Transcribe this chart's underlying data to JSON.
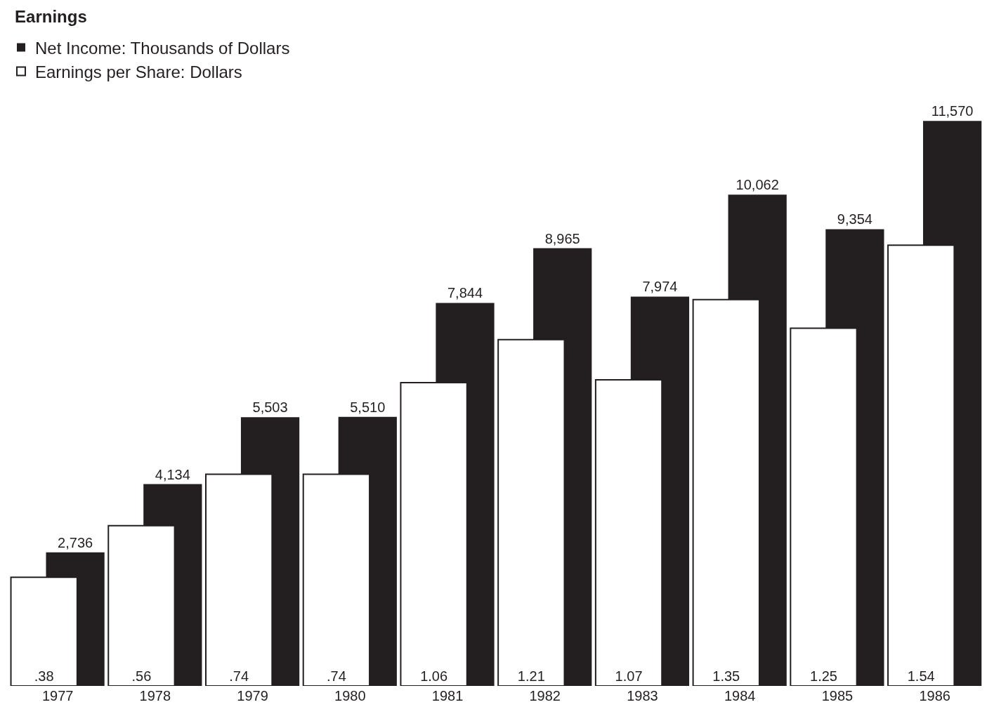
{
  "chart_data": {
    "type": "bar",
    "title": "Earnings",
    "categories": [
      "1977",
      "1978",
      "1979",
      "1980",
      "1981",
      "1982",
      "1983",
      "1984",
      "1985",
      "1986"
    ],
    "series": [
      {
        "name": "Net Income: Thousands of Dollars",
        "color": "#231f20",
        "values": [
          2736,
          4134,
          5503,
          5510,
          7844,
          8965,
          7974,
          10062,
          9354,
          11570
        ],
        "value_labels": [
          "2,736",
          "4,134",
          "5,503",
          "5,510",
          "7,844",
          "8,965",
          "7,974",
          "10,062",
          "9,354",
          "11,570"
        ]
      },
      {
        "name": "Earnings per Share: Dollars",
        "color": "#ffffff",
        "axis": "y2",
        "values": [
          0.38,
          0.56,
          0.74,
          0.74,
          1.06,
          1.21,
          1.07,
          1.35,
          1.25,
          1.54
        ],
        "value_labels": [
          ".38",
          ".56",
          ".74",
          ".74",
          "1.06",
          "1.21",
          "1.07",
          "1.35",
          "1.25",
          "1.54"
        ]
      }
    ],
    "tick_labels": "x",
    "grid": false,
    "legend": "top left"
  }
}
